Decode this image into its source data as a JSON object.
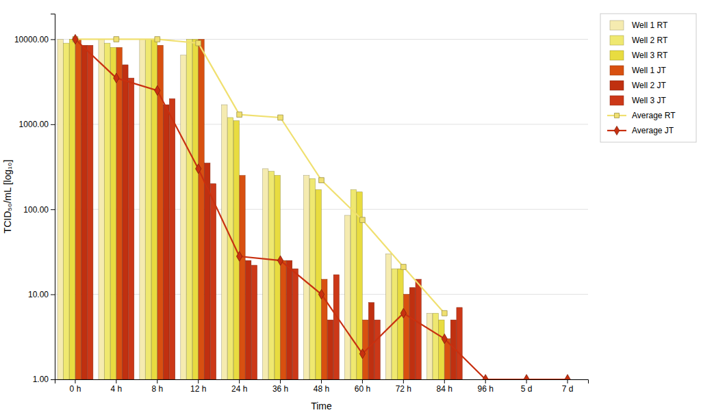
{
  "chart_data": {
    "type": "bar",
    "x_label": "Time",
    "y_label": "TCID₅₀/mL [log₁₀]",
    "categories": [
      "0 h",
      "4 h",
      "8 h",
      "12 h",
      "24 h",
      "36 h",
      "48 h",
      "60 h",
      "72 h",
      "84 h",
      "96 h",
      "5 d",
      "7 d"
    ],
    "series": [
      {
        "name": "Well 1 RT",
        "type": "bar",
        "color": "#f5ebb0",
        "values": [
          10000,
          10000,
          10000,
          6500,
          1700,
          300,
          250,
          85,
          30,
          6,
          null,
          null,
          null
        ]
      },
      {
        "name": "Well 2 RT",
        "type": "bar",
        "color": "#efe870",
        "values": [
          9000,
          9000,
          10000,
          10000,
          1200,
          280,
          230,
          170,
          20,
          6,
          null,
          null,
          null
        ]
      },
      {
        "name": "Well 3 RT",
        "type": "bar",
        "color": "#e8dc40",
        "values": [
          10000,
          8000,
          10000,
          10000,
          1100,
          250,
          170,
          160,
          20,
          5,
          null,
          null,
          null
        ]
      },
      {
        "name": "Well 1 JT",
        "type": "bar",
        "color": "#d85010",
        "values": [
          10000,
          8000,
          8500,
          10000,
          250,
          25,
          15,
          5,
          10,
          3,
          1,
          1,
          1
        ]
      },
      {
        "name": "Well 2 JT",
        "type": "bar",
        "color": "#c03010",
        "values": [
          8500,
          5000,
          1700,
          350,
          25,
          25,
          5,
          8,
          12,
          5,
          1,
          1,
          1
        ]
      },
      {
        "name": "Well 3 JT",
        "type": "bar",
        "color": "#cc3818",
        "values": [
          8500,
          3500,
          2000,
          200,
          22,
          20,
          17,
          5,
          15,
          7,
          1,
          1,
          1
        ]
      },
      {
        "name": "Average RT",
        "type": "line",
        "color": "#f0e070",
        "marker": "square",
        "line_style": "solid",
        "values": [
          10000,
          10000,
          10000,
          9000,
          1300,
          1200,
          220,
          75,
          21,
          6,
          null,
          null,
          null
        ]
      },
      {
        "name": "Average JT",
        "type": "line",
        "color": "#c83010",
        "marker": "diamond",
        "line_style": "solid",
        "values": [
          10000,
          3500,
          2500,
          300,
          28,
          25,
          10,
          2,
          6,
          3,
          1,
          1,
          1
        ]
      }
    ],
    "log": "y",
    "ylim": [
      1.0,
      20000
    ],
    "yticks": [
      {
        "value": 1,
        "label": "1.00"
      },
      {
        "value": 10,
        "label": "10.00"
      },
      {
        "value": 100,
        "label": "100.00"
      },
      {
        "value": 1000,
        "label": "1000.00"
      },
      {
        "value": 10000,
        "label": "10000.00"
      }
    ],
    "grid": true,
    "legend": "upper right"
  }
}
